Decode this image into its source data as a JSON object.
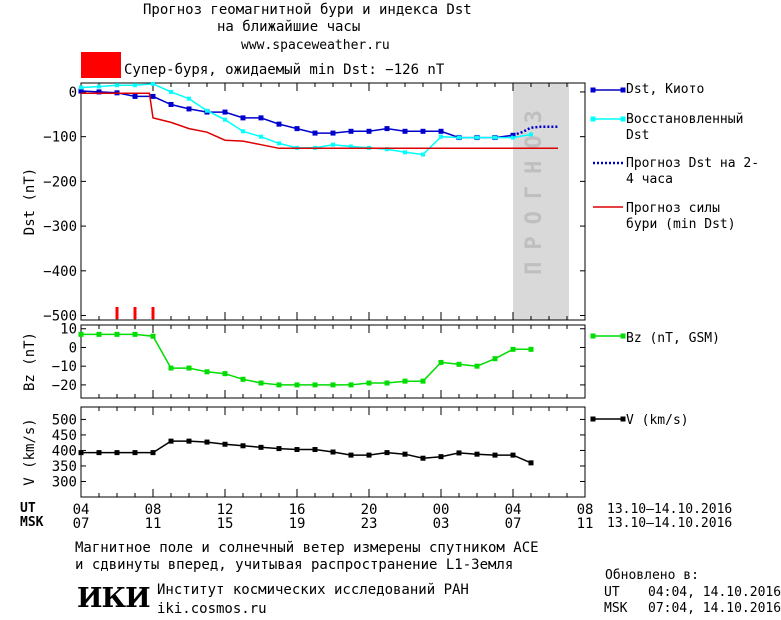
{
  "header": {
    "title_line1": "Прогноз геомагнитной бури и индекса Dst",
    "title_line2": "на ближайшие часы",
    "url": "www.spaceweather.ru",
    "storm_label": "Супер-буря, ожидаемый min Dst: −126 nT",
    "storm_color": "#ff0000"
  },
  "colors": {
    "dst": "#0000cc",
    "restored": "#00ffff",
    "forecast": "#0000cc",
    "storm": "#dd0000",
    "bz": "#00dd00",
    "v": "#000000",
    "forecast_band": "#d9d9d9"
  },
  "chart_data": [
    {
      "type": "line",
      "name": "dst-panel",
      "ylabel": "Dst (nT)",
      "ylim": [
        -510,
        20
      ],
      "yticks": [
        0,
        -100,
        -200,
        -300,
        -400,
        -500
      ],
      "forecast_band_label": "ПРОГНОЗ",
      "forecast_band_start": 28,
      "series": [
        {
          "name": "Dst, Киото",
          "key": "dst",
          "x": [
            4,
            5,
            6,
            7,
            8,
            9,
            10,
            11,
            12,
            13,
            14,
            15,
            16,
            17,
            18,
            19,
            20,
            21,
            22,
            23,
            24,
            25,
            26,
            27,
            28
          ],
          "values": [
            2,
            0,
            -2,
            -10,
            -10,
            -28,
            -38,
            -45,
            -45,
            -58,
            -58,
            -72,
            -82,
            -92,
            -92,
            -88,
            -88,
            -82,
            -88,
            -88,
            -88,
            -102,
            -102,
            -102,
            -97
          ]
        },
        {
          "name": "Восстановленный Dst",
          "key": "restored",
          "x": [
            4,
            5,
            6,
            7,
            8,
            9,
            10,
            11,
            12,
            13,
            14,
            15,
            16,
            17,
            18,
            19,
            20,
            21,
            22,
            23,
            24,
            25,
            26,
            27,
            28,
            29
          ],
          "values": [
            10,
            12,
            15,
            15,
            18,
            0,
            -15,
            -42,
            -62,
            -88,
            -100,
            -115,
            -125,
            -125,
            -118,
            -122,
            -125,
            -128,
            -135,
            -140,
            -100,
            -102,
            -102,
            -102,
            -102,
            -95
          ]
        },
        {
          "name": "Прогноз Dst на 2-4 часа",
          "key": "forecast",
          "dashed": true,
          "x": [
            28,
            28.5,
            29,
            29.5,
            30,
            30.5
          ],
          "values": [
            -97,
            -90,
            -80,
            -78,
            -78,
            -78
          ]
        },
        {
          "name": "Прогноз силы бури (min Dst)",
          "key": "storm",
          "step": true,
          "x": [
            4,
            7.8,
            8,
            9,
            10,
            11,
            12,
            13,
            14,
            15,
            16,
            30.5
          ],
          "values": [
            -3,
            -3,
            -58,
            -68,
            -82,
            -90,
            -108,
            -110,
            -118,
            -126,
            -126,
            -126
          ]
        }
      ],
      "markers_x": [
        6,
        7,
        8
      ]
    },
    {
      "type": "line",
      "name": "bz-panel",
      "ylabel": "Bz (nT)",
      "ylim": [
        -27,
        12
      ],
      "yticks": [
        10,
        0,
        -10,
        -20
      ],
      "series": [
        {
          "name": "Bz (nT, GSM)",
          "key": "bz",
          "x": [
            4,
            5,
            6,
            7,
            8,
            9,
            10,
            11,
            12,
            13,
            14,
            15,
            16,
            17,
            18,
            19,
            20,
            21,
            22,
            23,
            24,
            25,
            26,
            27,
            28,
            29
          ],
          "values": [
            7,
            7,
            7,
            7,
            6,
            -11,
            -11,
            -13,
            -14,
            -17,
            -19,
            -20,
            -20,
            -20,
            -20,
            -20,
            -19,
            -19,
            -18,
            -18,
            -8,
            -9,
            -10,
            -6,
            -1,
            -1
          ]
        }
      ]
    },
    {
      "type": "line",
      "name": "v-panel",
      "ylabel": "V (km/s)",
      "ylim": [
        250,
        540
      ],
      "yticks": [
        500,
        450,
        400,
        350,
        300
      ],
      "series": [
        {
          "name": "V (km/s)",
          "key": "v",
          "x": [
            4,
            5,
            6,
            7,
            8,
            9,
            10,
            11,
            12,
            13,
            14,
            15,
            16,
            17,
            18,
            19,
            20,
            21,
            22,
            23,
            24,
            25,
            26,
            27,
            28,
            29
          ],
          "values": [
            393,
            393,
            393,
            393,
            393,
            430,
            430,
            427,
            420,
            415,
            410,
            406,
            403,
            403,
            395,
            385,
            385,
            393,
            388,
            375,
            380,
            392,
            388,
            385,
            385,
            360
          ]
        }
      ]
    }
  ],
  "xaxis": {
    "ut_label": "UT",
    "msk_label": "MSK",
    "ut_ticks": [
      "04",
      "08",
      "12",
      "16",
      "20",
      "00",
      "04",
      "08"
    ],
    "msk_ticks": [
      "07",
      "11",
      "15",
      "19",
      "23",
      "03",
      "07",
      "11"
    ],
    "date_range_ut": "13.10–14.10.2016",
    "date_range_msk": "13.10–14.10.2016"
  },
  "footer": {
    "note_line1": "Магнитное поле и солнечный ветер измерены спутником ACE",
    "note_line2": "и сдвинуты вперед, учитывая распространение L1-Земля",
    "logo_text": "ИКИ",
    "institute": "Институт космических исследований РАН",
    "institute_url": "iki.cosmos.ru",
    "updated_label": "Обновлено в:",
    "updated_ut_label": "UT",
    "updated_ut": "04:04, 14.10.2016",
    "updated_msk_label": "MSK",
    "updated_msk": "07:04, 14.10.2016"
  }
}
